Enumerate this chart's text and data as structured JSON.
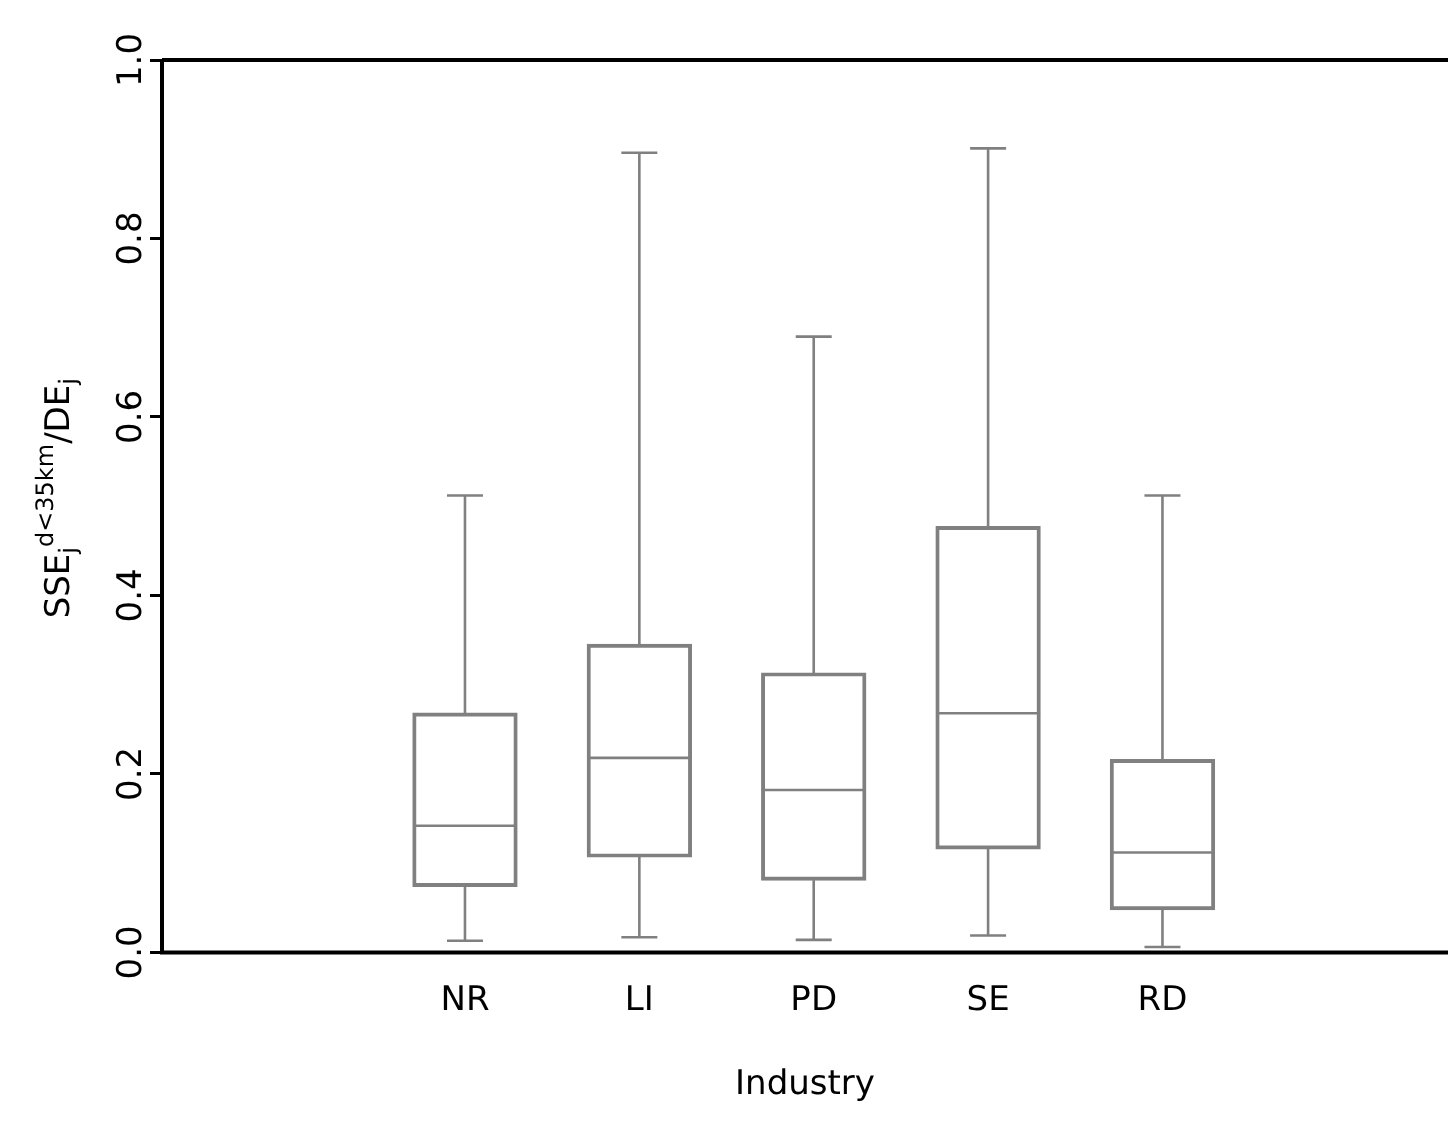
{
  "chart_data": {
    "type": "box",
    "xlabel": "Industry",
    "ylabel": "SSE$_{j}$$^{d<35km}$/DE$_{j}$",
    "categories": [
      "NR",
      "LI",
      "PD",
      "SE",
      "RD"
    ],
    "color": "#808080",
    "boxes": [
      {
        "low": 0.013,
        "q1": 0.074,
        "median": 0.142,
        "q3": 0.268,
        "high": 0.512
      },
      {
        "low": 0.017,
        "q1": 0.107,
        "median": 0.218,
        "q3": 0.345,
        "high": 0.896
      },
      {
        "low": 0.014,
        "q1": 0.081,
        "median": 0.182,
        "q3": 0.313,
        "high": 0.69
      },
      {
        "low": 0.019,
        "q1": 0.116,
        "median": 0.268,
        "q3": 0.477,
        "high": 0.901
      },
      {
        "low": 0.006,
        "q1": 0.048,
        "median": 0.112,
        "q3": 0.216,
        "high": 0.512
      }
    ],
    "ylim": [
      0,
      1
    ],
    "yticks": [
      {
        "value": 0,
        "label": "0.0"
      },
      {
        "value": 0.2,
        "label": "0.2"
      },
      {
        "value": 0.4,
        "label": "0.4"
      },
      {
        "value": 0.6,
        "label": "0.6"
      },
      {
        "value": 0.8,
        "label": "0.8"
      },
      {
        "value": 1.0,
        "label": "1.0"
      }
    ],
    "grid": false
  }
}
